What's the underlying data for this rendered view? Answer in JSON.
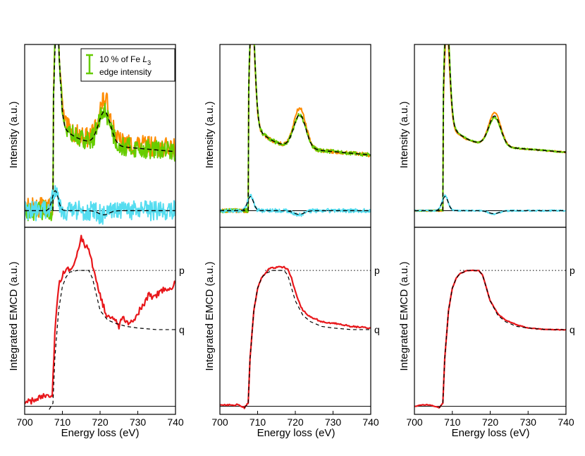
{
  "colors": {
    "measured_1": "#ff8c00",
    "measured_2": "#66cc00",
    "difference": "#55ddf0",
    "emcd": "#e8171b",
    "fit": "#000000",
    "errorbar": "#66cc00"
  },
  "legend": {
    "line1": "10 % of Fe ",
    "element": "L",
    "subscript": "3",
    "line2": "edge intensity"
  },
  "axis_labels": {
    "x": "Energy loss (eV)",
    "y_top": "Intensity (a.u.)",
    "y_bottom": "Integrated EMCD (a.u.)"
  },
  "markers": {
    "p": "p",
    "q": "q"
  },
  "chart_data": [
    {
      "type": "line",
      "panel": "top-left",
      "title": "",
      "xlabel": "",
      "ylabel": "Intensity (a.u.)",
      "xlim": [
        700,
        740
      ],
      "ylim": [
        -0.1,
        1.0
      ],
      "noise": 0.06,
      "series": [
        {
          "name": "spectrum-1",
          "model": "edge",
          "baseline": 0.0,
          "pre": 0.02,
          "edge": 707.6,
          "step": 0.42,
          "peak1": 0.78,
          "peak2": 0.25,
          "slope": -0.002
        },
        {
          "name": "spectrum-2",
          "model": "edge",
          "baseline": 0.0,
          "pre": 0.0,
          "edge": 707.6,
          "step": 0.42,
          "peak1": 0.78,
          "peak2": 0.2,
          "slope": -0.002
        },
        {
          "name": "fit",
          "model": "edge",
          "baseline": 0.0,
          "pre": 0.0,
          "edge": 707.6,
          "step": 0.42,
          "peak1": 0.76,
          "peak2": 0.2,
          "slope": -0.002
        },
        {
          "name": "difference",
          "model": "diff",
          "a1": 0.14,
          "a2": -0.03
        },
        {
          "name": "difference-fit",
          "model": "diff",
          "a1": 0.12,
          "a2": -0.025
        }
      ],
      "legend_errorbar": "10 % of Fe L3 edge intensity"
    },
    {
      "type": "line",
      "panel": "top-middle",
      "xlim": [
        700,
        740
      ],
      "ylim": [
        -0.1,
        1.0
      ],
      "noise": 0.012,
      "series": [
        {
          "name": "spectrum-1",
          "model": "edge",
          "baseline": 0.0,
          "pre": 0.0,
          "edge": 707.6,
          "step": 0.4,
          "peak1": 0.82,
          "peak2": 0.24,
          "slope": -0.002
        },
        {
          "name": "spectrum-2",
          "model": "edge",
          "baseline": 0.0,
          "pre": 0.0,
          "edge": 707.6,
          "step": 0.4,
          "peak1": 0.86,
          "peak2": 0.2,
          "slope": -0.002
        },
        {
          "name": "fit",
          "model": "edge",
          "baseline": 0.0,
          "pre": 0.0,
          "edge": 707.6,
          "step": 0.4,
          "peak1": 0.84,
          "peak2": 0.2,
          "slope": -0.002
        },
        {
          "name": "difference",
          "model": "diff",
          "a1": 0.09,
          "a2": -0.025
        },
        {
          "name": "difference-fit",
          "model": "diff",
          "a1": 0.085,
          "a2": -0.022
        }
      ]
    },
    {
      "type": "line",
      "panel": "top-right",
      "xlim": [
        700,
        740
      ],
      "ylim": [
        -0.1,
        1.0
      ],
      "noise": 0.004,
      "series": [
        {
          "name": "spectrum-1",
          "model": "edge",
          "baseline": 0.0,
          "pre": 0.0,
          "edge": 707.6,
          "step": 0.41,
          "peak1": 0.74,
          "peak2": 0.2,
          "slope": -0.0018
        },
        {
          "name": "spectrum-2",
          "model": "edge",
          "baseline": 0.0,
          "pre": 0.0,
          "edge": 707.6,
          "step": 0.41,
          "peak1": 0.84,
          "peak2": 0.17,
          "slope": -0.0018
        },
        {
          "name": "fit",
          "model": "edge",
          "baseline": 0.0,
          "pre": 0.0,
          "edge": 707.6,
          "step": 0.41,
          "peak1": 0.8,
          "peak2": 0.18,
          "slope": -0.0018
        },
        {
          "name": "difference",
          "model": "diff",
          "a1": 0.09,
          "a2": -0.02
        },
        {
          "name": "difference-fit",
          "model": "diff",
          "a1": 0.085,
          "a2": -0.018
        }
      ]
    },
    {
      "type": "line",
      "panel": "bottom-left",
      "xlabel": "Energy loss (eV)",
      "ylabel": "Integrated EMCD (a.u.)",
      "xlim": [
        700,
        740
      ],
      "ylim": [
        -0.05,
        1.12
      ],
      "xticks": [
        700,
        710,
        720,
        730,
        740
      ],
      "p_level": 0.85,
      "q_level": 0.48,
      "noise": 0.02,
      "series": [
        {
          "name": "integrated-emcd",
          "points": [
            [
              700,
              0.02
            ],
            [
              703,
              0.04
            ],
            [
              705,
              0.06
            ],
            [
              706.5,
              0.05
            ],
            [
              707.3,
              0.08
            ],
            [
              708,
              0.45
            ],
            [
              709,
              0.75
            ],
            [
              710,
              0.82
            ],
            [
              711,
              0.85
            ],
            [
              712,
              0.86
            ],
            [
              713,
              0.9
            ],
            [
              714,
              0.97
            ],
            [
              715,
              1.05
            ],
            [
              716,
              1.0
            ],
            [
              717,
              0.98
            ],
            [
              718,
              0.88
            ],
            [
              719,
              0.8
            ],
            [
              720,
              0.7
            ],
            [
              721,
              0.62
            ],
            [
              722,
              0.55
            ],
            [
              723,
              0.55
            ],
            [
              724,
              0.54
            ],
            [
              725,
              0.5
            ],
            [
              726,
              0.56
            ],
            [
              727,
              0.54
            ],
            [
              728,
              0.52
            ],
            [
              729,
              0.55
            ],
            [
              730,
              0.58
            ],
            [
              731,
              0.62
            ],
            [
              732,
              0.65
            ],
            [
              733,
              0.7
            ],
            [
              734,
              0.68
            ],
            [
              735,
              0.7
            ],
            [
              736,
              0.72
            ],
            [
              737,
              0.74
            ],
            [
              738,
              0.73
            ],
            [
              739,
              0.75
            ],
            [
              740,
              0.77
            ]
          ]
        },
        {
          "name": "integrated-fit",
          "points": [
            [
              706.5,
              -0.02
            ],
            [
              707.5,
              0.02
            ],
            [
              708,
              0.3
            ],
            [
              709,
              0.6
            ],
            [
              710,
              0.75
            ],
            [
              711,
              0.81
            ],
            [
              712,
              0.84
            ],
            [
              714,
              0.85
            ],
            [
              717,
              0.85
            ],
            [
              718,
              0.8
            ],
            [
              719,
              0.7
            ],
            [
              720,
              0.6
            ],
            [
              722,
              0.54
            ],
            [
              724,
              0.52
            ],
            [
              727,
              0.5
            ],
            [
              730,
              0.49
            ],
            [
              735,
              0.48
            ],
            [
              740,
              0.48
            ]
          ]
        }
      ]
    },
    {
      "type": "line",
      "panel": "bottom-middle",
      "xlabel": "Energy loss (eV)",
      "ylabel": "Integrated EMCD (a.u.)",
      "xlim": [
        700,
        740
      ],
      "ylim": [
        -0.05,
        1.12
      ],
      "xticks": [
        700,
        710,
        720,
        730,
        740
      ],
      "p_level": 0.85,
      "q_level": 0.48,
      "noise": 0.005,
      "series": [
        {
          "name": "integrated-emcd",
          "points": [
            [
              700,
              0.01
            ],
            [
              705,
              0.01
            ],
            [
              706.5,
              -0.01
            ],
            [
              707.5,
              0.02
            ],
            [
              708,
              0.3
            ],
            [
              709,
              0.6
            ],
            [
              710,
              0.74
            ],
            [
              711,
              0.8
            ],
            [
              712,
              0.83
            ],
            [
              713,
              0.86
            ],
            [
              715,
              0.87
            ],
            [
              717,
              0.87
            ],
            [
              718,
              0.86
            ],
            [
              719,
              0.8
            ],
            [
              720,
              0.72
            ],
            [
              721,
              0.65
            ],
            [
              722,
              0.6
            ],
            [
              724,
              0.56
            ],
            [
              727,
              0.53
            ],
            [
              730,
              0.52
            ],
            [
              735,
              0.5
            ],
            [
              740,
              0.49
            ]
          ]
        },
        {
          "name": "integrated-fit",
          "points": [
            [
              706.5,
              -0.01
            ],
            [
              707.5,
              0.02
            ],
            [
              708,
              0.3
            ],
            [
              709,
              0.6
            ],
            [
              710,
              0.74
            ],
            [
              711,
              0.8
            ],
            [
              712,
              0.83
            ],
            [
              714,
              0.85
            ],
            [
              717,
              0.85
            ],
            [
              718,
              0.82
            ],
            [
              719,
              0.74
            ],
            [
              720,
              0.66
            ],
            [
              722,
              0.57
            ],
            [
              724,
              0.53
            ],
            [
              727,
              0.5
            ],
            [
              730,
              0.49
            ],
            [
              735,
              0.48
            ],
            [
              740,
              0.48
            ]
          ]
        }
      ]
    },
    {
      "type": "line",
      "panel": "bottom-right",
      "xlabel": "Energy loss (eV)",
      "ylabel": "Integrated EMCD (a.u.)",
      "xlim": [
        700,
        740
      ],
      "ylim": [
        -0.05,
        1.12
      ],
      "xticks": [
        700,
        710,
        720,
        730,
        740
      ],
      "p_level": 0.85,
      "q_level": 0.48,
      "noise": 0.002,
      "series": [
        {
          "name": "integrated-emcd",
          "points": [
            [
              700,
              0.0
            ],
            [
              702,
              0.01
            ],
            [
              704,
              0.01
            ],
            [
              705.5,
              0.0
            ],
            [
              706.5,
              -0.01
            ],
            [
              707.5,
              0.02
            ],
            [
              708,
              0.3
            ],
            [
              709,
              0.6
            ],
            [
              710,
              0.74
            ],
            [
              711,
              0.8
            ],
            [
              712,
              0.83
            ],
            [
              714,
              0.85
            ],
            [
              717,
              0.85
            ],
            [
              718,
              0.82
            ],
            [
              719,
              0.74
            ],
            [
              720,
              0.66
            ],
            [
              722,
              0.58
            ],
            [
              724,
              0.54
            ],
            [
              727,
              0.51
            ],
            [
              730,
              0.49
            ],
            [
              735,
              0.48
            ],
            [
              740,
              0.48
            ]
          ]
        },
        {
          "name": "integrated-fit",
          "points": [
            [
              706.5,
              -0.01
            ],
            [
              707.5,
              0.02
            ],
            [
              708,
              0.3
            ],
            [
              709,
              0.6
            ],
            [
              710,
              0.74
            ],
            [
              711,
              0.8
            ],
            [
              712,
              0.83
            ],
            [
              714,
              0.85
            ],
            [
              717,
              0.85
            ],
            [
              718,
              0.82
            ],
            [
              719,
              0.74
            ],
            [
              720,
              0.66
            ],
            [
              722,
              0.57
            ],
            [
              724,
              0.53
            ],
            [
              727,
              0.5
            ],
            [
              730,
              0.49
            ],
            [
              735,
              0.48
            ],
            [
              740,
              0.48
            ]
          ]
        }
      ]
    }
  ]
}
